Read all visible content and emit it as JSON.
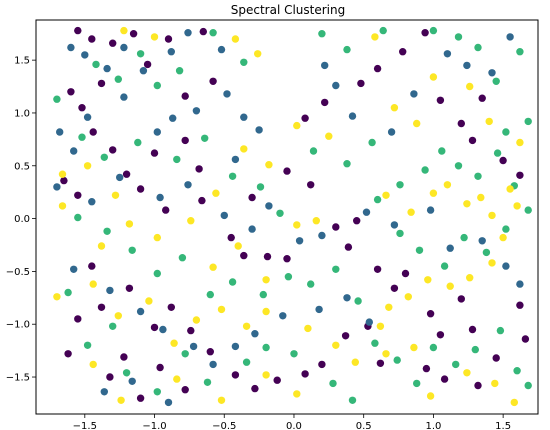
{
  "chart_data": {
    "type": "scatter",
    "title": "Spectral Clustering",
    "xlabel": "",
    "ylabel": "",
    "xlim": [
      -1.85,
      1.75
    ],
    "ylim": [
      -1.85,
      1.88
    ],
    "xticks": [
      -1.5,
      -1.0,
      -0.5,
      0.0,
      0.5,
      1.0,
      1.5
    ],
    "yticks": [
      -1.5,
      -1.0,
      -0.5,
      0.0,
      0.5,
      1.0,
      1.5
    ],
    "xtick_labels": [
      "−1.5",
      "−1.0",
      "−0.5",
      "0.0",
      "0.5",
      "1.0",
      "1.5"
    ],
    "ytick_labels": [
      "−1.5",
      "−1.0",
      "−0.5",
      "0.0",
      "0.5",
      "1.0",
      "1.5"
    ],
    "grid": false,
    "colors": {
      "cluster_0": "#440154",
      "cluster_1": "#31688e",
      "cluster_2": "#35b779",
      "cluster_3": "#fde725"
    },
    "series": [
      {
        "cluster": 0,
        "color": "#440154",
        "points": [
          [
            -1.55,
            1.78
          ],
          [
            -1.45,
            1.7
          ],
          [
            -1.3,
            1.66
          ],
          [
            -1.15,
            1.75
          ],
          [
            -0.9,
            1.7
          ],
          [
            -0.65,
            1.77
          ],
          [
            -1.6,
            1.2
          ],
          [
            -1.52,
            1.05
          ],
          [
            -1.38,
            1.28
          ],
          [
            -1.05,
            1.46
          ],
          [
            -0.78,
            1.16
          ],
          [
            -0.58,
            1.3
          ],
          [
            -1.44,
            0.82
          ],
          [
            -1.3,
            0.65
          ],
          [
            -1.2,
            0.42
          ],
          [
            -1.0,
            0.62
          ],
          [
            -0.78,
            0.74
          ],
          [
            -0.68,
            0.47
          ],
          [
            -1.65,
            0.36
          ],
          [
            -1.55,
            0.22
          ],
          [
            -1.1,
            0.28
          ],
          [
            -0.92,
            0.08
          ],
          [
            -0.66,
            0.17
          ],
          [
            -0.45,
            -0.18
          ],
          [
            -0.36,
            -0.35
          ],
          [
            -0.19,
            -0.36
          ],
          [
            -0.05,
            -0.38
          ],
          [
            0.3,
            -0.08
          ],
          [
            0.39,
            -0.27
          ],
          [
            0.45,
            -0.02
          ],
          [
            0.6,
            -0.48
          ],
          [
            0.72,
            -0.66
          ],
          [
            0.8,
            -0.52
          ],
          [
            0.98,
            -0.9
          ],
          [
            1.05,
            -1.1
          ],
          [
            1.2,
            -0.76
          ],
          [
            1.28,
            -1.05
          ],
          [
            1.45,
            -1.32
          ],
          [
            1.62,
            -0.82
          ],
          [
            1.66,
            -1.14
          ],
          [
            1.32,
            -1.58
          ],
          [
            1.08,
            -1.52
          ],
          [
            0.95,
            -1.42
          ],
          [
            0.62,
            -1.37
          ],
          [
            0.53,
            -1.02
          ],
          [
            0.37,
            -1.11
          ],
          [
            0.2,
            -1.38
          ],
          [
            0.08,
            -1.47
          ],
          [
            -0.12,
            -1.53
          ],
          [
            -0.28,
            -1.61
          ],
          [
            -0.42,
            -1.48
          ],
          [
            -0.6,
            -1.26
          ],
          [
            -0.74,
            -1.06
          ],
          [
            -0.88,
            -0.84
          ],
          [
            -1.0,
            -1.03
          ],
          [
            -1.18,
            -0.66
          ],
          [
            -1.38,
            -0.84
          ],
          [
            -1.55,
            -0.95
          ],
          [
            -1.62,
            -1.28
          ],
          [
            -1.32,
            -1.5
          ],
          [
            -1.1,
            -1.7
          ],
          [
            -1.22,
            -1.31
          ],
          [
            -0.96,
            -1.41
          ],
          [
            -0.78,
            -1.62
          ],
          [
            0.08,
            0.95
          ],
          [
            0.22,
            1.1
          ],
          [
            0.48,
            1.28
          ],
          [
            0.6,
            1.42
          ],
          [
            0.78,
            1.58
          ],
          [
            0.94,
            1.76
          ],
          [
            1.05,
            1.12
          ],
          [
            1.2,
            0.9
          ],
          [
            1.35,
            1.14
          ],
          [
            1.28,
            0.74
          ],
          [
            1.5,
            0.55
          ],
          [
            1.62,
            0.41
          ],
          [
            -1.45,
            -0.45
          ],
          [
            -0.05,
            0.45
          ],
          [
            0.12,
            0.32
          ],
          [
            -0.3,
            0.2
          ]
        ]
      },
      {
        "cluster": 1,
        "color": "#31688e",
        "points": [
          [
            -1.6,
            1.62
          ],
          [
            -1.5,
            1.55
          ],
          [
            -1.34,
            1.42
          ],
          [
            -1.22,
            1.62
          ],
          [
            -1.08,
            1.4
          ],
          [
            -0.88,
            1.58
          ],
          [
            -0.76,
            1.76
          ],
          [
            -0.52,
            1.6
          ],
          [
            -1.68,
            0.82
          ],
          [
            -1.58,
            0.64
          ],
          [
            -1.48,
            0.96
          ],
          [
            -1.22,
            1.15
          ],
          [
            -0.98,
            0.82
          ],
          [
            -0.87,
            0.95
          ],
          [
            -0.7,
            1.02
          ],
          [
            -0.48,
            1.18
          ],
          [
            -0.36,
            0.96
          ],
          [
            -0.25,
            0.84
          ],
          [
            -1.7,
            0.3
          ],
          [
            -1.45,
            0.16
          ],
          [
            -1.25,
            0.39
          ],
          [
            -0.96,
            0.2
          ],
          [
            -0.76,
            0.32
          ],
          [
            -0.5,
            0.03
          ],
          [
            -0.3,
            -0.1
          ],
          [
            -0.18,
            0.12
          ],
          [
            0.04,
            -0.21
          ],
          [
            0.2,
            -0.16
          ],
          [
            0.52,
            0.06
          ],
          [
            0.72,
            -0.06
          ],
          [
            0.98,
            0.08
          ],
          [
            1.12,
            -0.28
          ],
          [
            1.35,
            -0.21
          ],
          [
            1.52,
            -0.45
          ],
          [
            1.62,
            -0.62
          ],
          [
            -1.58,
            -0.48
          ],
          [
            -1.32,
            -0.68
          ],
          [
            -1.1,
            -0.88
          ],
          [
            -0.94,
            -1.05
          ],
          [
            -0.72,
            -1.21
          ],
          [
            -0.58,
            -1.38
          ],
          [
            -0.42,
            -1.21
          ],
          [
            -0.28,
            -1.09
          ],
          [
            -0.08,
            -0.92
          ],
          [
            0.18,
            -0.86
          ],
          [
            0.38,
            -0.75
          ],
          [
            0.54,
            -0.98
          ],
          [
            -1.36,
            -1.64
          ],
          [
            -1.16,
            -1.54
          ],
          [
            -0.9,
            -1.74
          ],
          [
            0.22,
            1.45
          ],
          [
            0.3,
            1.26
          ],
          [
            0.42,
            0.97
          ],
          [
            0.7,
            0.82
          ],
          [
            0.86,
            1.18
          ],
          [
            1.1,
            1.56
          ],
          [
            1.24,
            1.45
          ],
          [
            1.42,
            1.38
          ],
          [
            1.55,
            1.72
          ],
          [
            -0.42,
            0.56
          ]
        ]
      },
      {
        "cluster": 2,
        "color": "#35b779",
        "points": [
          [
            -1.42,
            1.46
          ],
          [
            -1.26,
            1.32
          ],
          [
            -1.1,
            1.56
          ],
          [
            -0.98,
            1.26
          ],
          [
            -0.82,
            1.4
          ],
          [
            -0.58,
            1.76
          ],
          [
            -0.36,
            1.48
          ],
          [
            -1.7,
            1.13
          ],
          [
            -1.52,
            0.77
          ],
          [
            -1.36,
            0.58
          ],
          [
            -1.12,
            0.72
          ],
          [
            -0.84,
            0.56
          ],
          [
            -0.64,
            0.76
          ],
          [
            -0.44,
            0.4
          ],
          [
            -0.24,
            0.3
          ],
          [
            -0.1,
            0.05
          ],
          [
            0.14,
            0.64
          ],
          [
            0.38,
            0.52
          ],
          [
            0.56,
            0.72
          ],
          [
            0.76,
            0.32
          ],
          [
            0.94,
            0.46
          ],
          [
            1.06,
            0.64
          ],
          [
            1.18,
            0.5
          ],
          [
            1.32,
            0.4
          ],
          [
            1.46,
            0.62
          ],
          [
            1.58,
            0.31
          ],
          [
            1.68,
            0.08
          ],
          [
            1.52,
            -0.1
          ],
          [
            1.38,
            -0.32
          ],
          [
            1.22,
            -0.18
          ],
          [
            1.08,
            -0.45
          ],
          [
            0.9,
            -0.3
          ],
          [
            0.76,
            -0.14
          ],
          [
            0.6,
            0.18
          ],
          [
            -1.55,
            0.01
          ],
          [
            -1.34,
            -0.12
          ],
          [
            -1.16,
            -0.3
          ],
          [
            -0.98,
            -0.52
          ],
          [
            -0.8,
            -0.37
          ],
          [
            -0.6,
            -0.72
          ],
          [
            -0.44,
            -0.6
          ],
          [
            -0.22,
            -0.72
          ],
          [
            -0.04,
            -0.55
          ],
          [
            0.12,
            -0.62
          ],
          [
            0.3,
            -0.48
          ],
          [
            0.46,
            -0.78
          ],
          [
            0.58,
            -1.18
          ],
          [
            0.74,
            -1.34
          ],
          [
            0.88,
            -1.56
          ],
          [
            1.0,
            -1.22
          ],
          [
            1.16,
            -1.38
          ],
          [
            1.3,
            -1.24
          ],
          [
            1.48,
            -1.06
          ],
          [
            1.6,
            -1.44
          ],
          [
            1.68,
            -1.58
          ],
          [
            -1.62,
            -0.7
          ],
          [
            -1.48,
            -1.2
          ],
          [
            -1.3,
            -1.02
          ],
          [
            -1.2,
            -1.46
          ],
          [
            -0.98,
            -1.64
          ],
          [
            -0.78,
            -1.28
          ],
          [
            -0.62,
            -1.55
          ],
          [
            -0.34,
            -1.36
          ],
          [
            -0.2,
            -1.22
          ],
          [
            0.0,
            -1.28
          ],
          [
            0.28,
            -1.56
          ],
          [
            0.42,
            -1.72
          ],
          [
            1.0,
            1.78
          ],
          [
            1.18,
            1.72
          ],
          [
            1.32,
            1.62
          ],
          [
            1.45,
            1.3
          ],
          [
            1.62,
            1.58
          ],
          [
            1.68,
            0.92
          ],
          [
            1.52,
            0.82
          ],
          [
            0.64,
            1.78
          ],
          [
            0.38,
            1.6
          ],
          [
            0.2,
            1.75
          ]
        ]
      },
      {
        "cluster": 3,
        "color": "#fde725",
        "points": [
          [
            -1.22,
            1.78
          ],
          [
            -1.0,
            1.72
          ],
          [
            -0.42,
            1.7
          ],
          [
            -0.26,
            1.56
          ],
          [
            -1.66,
            0.42
          ],
          [
            -1.48,
            0.5
          ],
          [
            -1.28,
            0.22
          ],
          [
            -0.56,
            0.24
          ],
          [
            -0.36,
            0.66
          ],
          [
            -0.18,
            0.51
          ],
          [
            0.02,
            0.88
          ],
          [
            0.25,
            0.78
          ],
          [
            0.58,
            1.72
          ],
          [
            0.72,
            1.05
          ],
          [
            0.88,
            0.9
          ],
          [
            1.0,
            1.34
          ],
          [
            1.26,
            1.25
          ],
          [
            1.4,
            0.92
          ],
          [
            1.62,
            0.72
          ],
          [
            -1.66,
            0.12
          ],
          [
            -1.38,
            -0.26
          ],
          [
            -1.18,
            -0.05
          ],
          [
            -0.98,
            -0.18
          ],
          [
            -0.74,
            -0.02
          ],
          [
            -0.58,
            -0.46
          ],
          [
            -0.4,
            -0.26
          ],
          [
            -0.2,
            -0.58
          ],
          [
            0.02,
            -0.06
          ],
          [
            0.16,
            -0.02
          ],
          [
            0.66,
            0.22
          ],
          [
            0.84,
            0.06
          ],
          [
            1.0,
            0.24
          ],
          [
            1.1,
            0.32
          ],
          [
            1.24,
            0.14
          ],
          [
            1.34,
            0.2
          ],
          [
            1.42,
            0.03
          ],
          [
            1.55,
            0.28
          ],
          [
            1.6,
            0.12
          ],
          [
            1.5,
            -0.18
          ],
          [
            1.42,
            -0.42
          ],
          [
            1.26,
            -0.56
          ],
          [
            1.12,
            -0.64
          ],
          [
            0.96,
            -0.58
          ],
          [
            0.82,
            -0.74
          ],
          [
            0.68,
            -0.84
          ],
          [
            0.62,
            -1.02
          ],
          [
            0.66,
            -1.28
          ],
          [
            0.86,
            -1.22
          ],
          [
            0.98,
            -1.68
          ],
          [
            1.24,
            -1.46
          ],
          [
            1.44,
            -1.56
          ],
          [
            1.58,
            -1.74
          ],
          [
            -1.7,
            -0.74
          ],
          [
            -1.44,
            -0.62
          ],
          [
            -1.26,
            -0.92
          ],
          [
            -1.04,
            -0.78
          ],
          [
            -0.86,
            -1.18
          ],
          [
            -0.7,
            -0.96
          ],
          [
            -0.52,
            -0.86
          ],
          [
            -0.34,
            -1.02
          ],
          [
            -0.2,
            -0.88
          ],
          [
            0.1,
            -1.04
          ],
          [
            0.3,
            -1.2
          ],
          [
            0.44,
            -1.36
          ],
          [
            -1.44,
            -1.38
          ],
          [
            -1.24,
            -1.72
          ],
          [
            -0.84,
            -1.52
          ],
          [
            -0.52,
            -1.72
          ],
          [
            -0.2,
            -1.48
          ],
          [
            0.02,
            -1.66
          ]
        ]
      }
    ]
  }
}
